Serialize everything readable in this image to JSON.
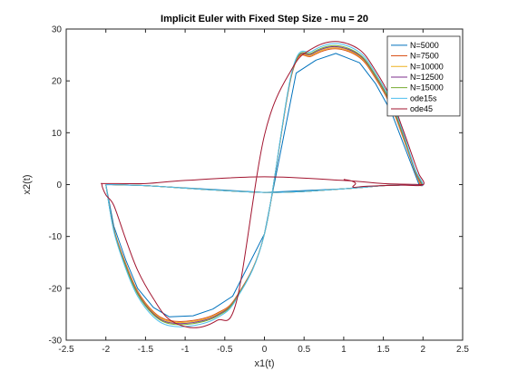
{
  "chart_data": {
    "type": "line",
    "title": "Implicit Euler with Fixed Step Size - mu = 20",
    "xlabel": "x1(t)",
    "ylabel": "x2(t)",
    "xlim": [
      -2.5,
      2.5
    ],
    "ylim": [
      -30,
      30
    ],
    "xticks": [
      -2.5,
      -2,
      -1.5,
      -1,
      -0.5,
      0,
      0.5,
      1,
      1.5,
      2,
      2.5
    ],
    "yticks": [
      -30,
      -20,
      -10,
      0,
      10,
      20,
      30
    ],
    "xtick_labels": [
      "-2.5",
      "-2",
      "-1.5",
      "-1",
      "-0.5",
      "0",
      "0.5",
      "1",
      "1.5",
      "2",
      "2.5"
    ],
    "ytick_labels": [
      "-30",
      "-20",
      "-10",
      "0",
      "10",
      "20",
      "30"
    ],
    "grid": false,
    "legend_position": "top-right",
    "series": [
      {
        "name": "N=5000",
        "color": "#0072BD",
        "x": [
          -2.0,
          -1.9,
          -1.75,
          -1.6,
          -1.4,
          -1.2,
          -0.9,
          -0.65,
          -0.4,
          0.0,
          0.4,
          0.65,
          0.9,
          1.2,
          1.4,
          1.6,
          1.75,
          1.9,
          1.95,
          1.9,
          1.5,
          1.0,
          0.0,
          -1.5,
          -2.0
        ],
        "y": [
          0.0,
          -8.0,
          -14.5,
          -20.0,
          -23.7,
          -25.5,
          -25.3,
          -24.0,
          -21.5,
          -9.5,
          21.5,
          24.0,
          25.3,
          23.5,
          19.5,
          14.0,
          8.0,
          2.0,
          0.0,
          -0.05,
          -0.2,
          -0.8,
          -1.5,
          -0.2,
          0.0
        ]
      },
      {
        "name": "N=7500",
        "color": "#D95319",
        "x": [
          -2.0,
          -1.9,
          -1.75,
          -1.6,
          -1.4,
          -1.2,
          -0.9,
          -0.6,
          -0.35,
          0.0,
          0.35,
          0.6,
          0.9,
          1.2,
          1.4,
          1.6,
          1.75,
          1.9,
          1.96,
          1.9,
          1.5,
          1.0,
          0.0,
          -1.5,
          -2.0
        ],
        "y": [
          0.0,
          -8.5,
          -15.2,
          -20.5,
          -24.5,
          -26.2,
          -26.2,
          -24.8,
          -21.5,
          -9.5,
          21.5,
          24.8,
          26.2,
          24.5,
          20.5,
          15.0,
          9.0,
          2.5,
          0.0,
          -0.05,
          -0.2,
          -0.8,
          -1.5,
          -0.2,
          0.0
        ]
      },
      {
        "name": "N=10000",
        "color": "#EDB120",
        "x": [
          -2.0,
          -1.9,
          -1.75,
          -1.6,
          -1.4,
          -1.2,
          -0.9,
          -0.6,
          -0.35,
          0.0,
          0.35,
          0.6,
          0.9,
          1.2,
          1.4,
          1.6,
          1.75,
          1.9,
          1.97,
          1.9,
          1.5,
          1.0,
          0.0,
          -1.5,
          -2.0
        ],
        "y": [
          0.0,
          -8.6,
          -15.4,
          -20.7,
          -24.7,
          -26.4,
          -26.4,
          -25.0,
          -21.6,
          -9.5,
          21.6,
          25.0,
          26.4,
          24.7,
          20.7,
          15.2,
          9.2,
          2.6,
          0.0,
          -0.05,
          -0.2,
          -0.8,
          -1.5,
          -0.2,
          0.0
        ]
      },
      {
        "name": "N=12500",
        "color": "#7E2F8E",
        "x": [
          -2.0,
          -1.9,
          -1.75,
          -1.6,
          -1.4,
          -1.2,
          -0.9,
          -0.6,
          -0.35,
          0.0,
          0.35,
          0.6,
          0.9,
          1.2,
          1.4,
          1.6,
          1.75,
          1.9,
          1.98,
          1.9,
          1.5,
          1.0,
          0.0,
          -1.5,
          -2.0
        ],
        "y": [
          0.0,
          -8.7,
          -15.6,
          -20.9,
          -24.9,
          -26.6,
          -26.6,
          -25.2,
          -21.7,
          -9.5,
          21.7,
          25.2,
          26.6,
          24.9,
          20.9,
          15.4,
          9.4,
          2.7,
          0.0,
          -0.05,
          -0.2,
          -0.8,
          -1.5,
          -0.2,
          0.0
        ]
      },
      {
        "name": "N=15000",
        "color": "#77AC30",
        "x": [
          -2.0,
          -1.9,
          -1.75,
          -1.6,
          -1.4,
          -1.2,
          -0.9,
          -0.6,
          -0.35,
          0.0,
          0.35,
          0.6,
          0.9,
          1.2,
          1.4,
          1.6,
          1.75,
          1.9,
          1.99,
          1.9,
          1.5,
          1.0,
          0.0,
          -1.5,
          -2.0
        ],
        "y": [
          0.0,
          -8.8,
          -15.8,
          -21.1,
          -25.1,
          -26.8,
          -26.8,
          -25.4,
          -21.8,
          -9.5,
          21.8,
          25.4,
          26.8,
          25.1,
          21.1,
          15.6,
          9.6,
          2.8,
          0.0,
          -0.05,
          -0.2,
          -0.8,
          -1.5,
          -0.2,
          0.0
        ]
      },
      {
        "name": "ode15s",
        "color": "#4DBEEE",
        "x": [
          -2.0,
          -1.9,
          -1.75,
          -1.6,
          -1.4,
          -1.2,
          -0.9,
          -0.6,
          -0.35,
          0.0,
          0.35,
          0.6,
          0.9,
          1.2,
          1.4,
          1.6,
          1.75,
          1.9,
          2.0,
          1.9,
          1.5,
          1.0,
          0.0,
          -1.5,
          -2.0
        ],
        "y": [
          0.0,
          -9.0,
          -16.2,
          -21.5,
          -25.5,
          -27.2,
          -27.2,
          -25.7,
          -22.0,
          -9.5,
          22.0,
          25.7,
          27.2,
          25.5,
          21.5,
          16.0,
          10.0,
          3.0,
          0.0,
          -0.05,
          -0.2,
          -0.8,
          -1.5,
          -0.2,
          0.0
        ]
      },
      {
        "name": "ode45",
        "color": "#A2142F",
        "x": [
          1.0,
          1.1,
          1.15,
          1.12,
          1.3,
          1.7,
          2.0,
          1.95,
          1.9,
          1.75,
          1.6,
          1.4,
          1.2,
          0.9,
          0.6,
          0.35,
          0.0,
          -0.35,
          -0.6,
          -0.9,
          -1.2,
          -1.4,
          -1.6,
          -1.75,
          -1.9,
          -2.0,
          -2.05,
          -2.0,
          -1.5,
          -1.0,
          0.0,
          1.0,
          1.5,
          1.9,
          2.0
        ],
        "y": [
          1.0,
          0.7,
          0.2,
          -0.5,
          -0.3,
          -0.1,
          -0.05,
          2.0,
          4.0,
          10.5,
          16.5,
          22.0,
          26.0,
          27.6,
          26.2,
          22.4,
          9.5,
          -22.4,
          -26.2,
          -27.6,
          -26.0,
          -22.0,
          -16.5,
          -10.5,
          -4.0,
          -2.0,
          0.0,
          0.2,
          0.2,
          0.8,
          1.5,
          0.8,
          0.2,
          0.05,
          0.0
        ]
      }
    ]
  }
}
